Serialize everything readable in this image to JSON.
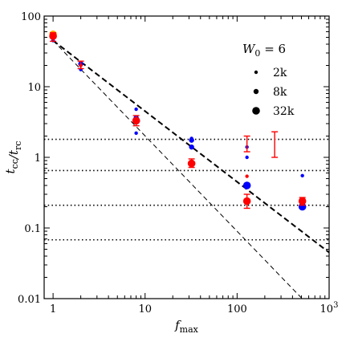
{
  "chart_data": {
    "type": "scatter",
    "xlabel": "f_max",
    "ylabel": "t_cc/t_rc",
    "xscale": "log",
    "yscale": "log",
    "xlim": [
      0.8,
      1000
    ],
    "ylim": [
      0.01,
      100
    ],
    "xticks": [
      {
        "value": 1,
        "base": "1",
        "exp": ""
      },
      {
        "value": 10,
        "base": "10",
        "exp": ""
      },
      {
        "value": 100,
        "base": "100",
        "exp": ""
      },
      {
        "value": 1000,
        "base": "10",
        "exp": "3"
      }
    ],
    "yticks": [
      {
        "value": 0.01,
        "label": "0.01"
      },
      {
        "value": 0.1,
        "label": "0.1"
      },
      {
        "value": 1,
        "label": "1"
      },
      {
        "value": 10,
        "label": "10"
      },
      {
        "value": 100,
        "label": "100"
      }
    ],
    "legend": {
      "position": "top-right",
      "title": "W_0 = 6",
      "title_main": "W",
      "title_sub": "0",
      "title_rest": " = 6",
      "entries": [
        {
          "label": "2k",
          "size": "small"
        },
        {
          "label": "8k",
          "size": "medium"
        },
        {
          "label": "32k",
          "size": "large"
        }
      ]
    },
    "colors": {
      "blue": "#0000ff",
      "red": "#ff0000",
      "orange": "#ffa500"
    },
    "hlines": [
      1.8,
      0.65,
      0.21,
      0.068
    ],
    "lines": [
      {
        "style": "thick-dashed",
        "points": [
          [
            1,
            45
          ],
          [
            1000,
            0.045
          ]
        ]
      },
      {
        "style": "thin-dashed",
        "points": [
          [
            1,
            45
          ],
          [
            700,
            0.0065
          ]
        ]
      }
    ],
    "points": [
      {
        "x": 1,
        "y": 55,
        "color": "orange",
        "size": "large"
      },
      {
        "x": 1,
        "y": 45,
        "color": "blue",
        "size": "small"
      },
      {
        "x": 2,
        "y": 17.5,
        "color": "blue",
        "size": "small"
      },
      {
        "x": 2,
        "y": 21,
        "color": "blue",
        "size": "medium"
      },
      {
        "x": 8,
        "y": 4.8,
        "color": "blue",
        "size": "small"
      },
      {
        "x": 8,
        "y": 2.2,
        "color": "blue",
        "size": "small"
      },
      {
        "x": 8,
        "y": 3.6,
        "color": "blue",
        "size": "medium"
      },
      {
        "x": 8,
        "y": 3.3,
        "color": "blue",
        "size": "large"
      },
      {
        "x": 32,
        "y": 1.85,
        "color": "blue",
        "size": "small"
      },
      {
        "x": 32,
        "y": 1.75,
        "color": "blue",
        "size": "medium"
      },
      {
        "x": 32,
        "y": 1.4,
        "color": "blue",
        "size": "medium"
      },
      {
        "x": 128,
        "y": 1.4,
        "color": "blue",
        "size": "small"
      },
      {
        "x": 128,
        "y": 1.0,
        "color": "blue",
        "size": "small"
      },
      {
        "x": 128,
        "y": 0.4,
        "color": "blue",
        "size": "large"
      },
      {
        "x": 512,
        "y": 0.55,
        "color": "blue",
        "size": "small"
      },
      {
        "x": 512,
        "y": 0.2,
        "color": "blue",
        "size": "large"
      },
      {
        "x": 512,
        "y": 0.22,
        "color": "blue",
        "size": "medium"
      },
      {
        "x": 1,
        "y": 52,
        "color": "red",
        "size": "large",
        "err": [
          44,
          58
        ]
      },
      {
        "x": 2,
        "y": 20,
        "color": "red",
        "size": "small",
        "err": [
          18,
          23
        ]
      },
      {
        "x": 8,
        "y": 3.3,
        "color": "red",
        "size": "large",
        "err": [
          2.8,
          3.9
        ]
      },
      {
        "x": 32,
        "y": 0.82,
        "color": "red",
        "size": "large",
        "err": [
          0.72,
          0.95
        ]
      },
      {
        "x": 128,
        "y": 0.54,
        "color": "red",
        "size": "small"
      },
      {
        "x": 128,
        "y": 0.24,
        "color": "red",
        "size": "large",
        "err": [
          0.19,
          0.3
        ]
      },
      {
        "x": 128,
        "y": 1.55,
        "color": "red",
        "size": "none",
        "err": [
          1.2,
          2.0
        ]
      },
      {
        "x": 256,
        "y": 1.6,
        "color": "red",
        "size": "none",
        "err": [
          1.0,
          2.3
        ]
      },
      {
        "x": 512,
        "y": 0.24,
        "color": "red",
        "size": "large",
        "err": [
          0.21,
          0.27
        ]
      }
    ]
  }
}
